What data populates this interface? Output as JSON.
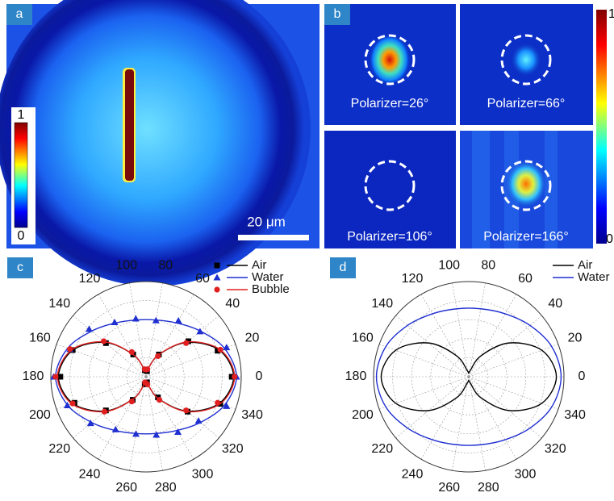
{
  "images": [
    {
      "label": "a",
      "colorbar": {
        "max": "1",
        "min": "0"
      },
      "scale_bar": "20 μm"
    },
    {
      "label": "b",
      "subpanels": [
        "Polarizer=26°",
        "Polarizer=66°",
        "Polarizer=106°",
        "Polarizer=166°"
      ],
      "colorbar": {
        "max": "1",
        "min": "0"
      }
    }
  ],
  "chart_data": [
    {
      "type": "polar",
      "panel_label": "c",
      "rlim": [
        0,
        1
      ],
      "rticks": [
        0.2,
        0.4,
        0.6,
        0.8,
        1
      ],
      "thetaticks": [
        0,
        20,
        40,
        60,
        80,
        100,
        120,
        140,
        160,
        180,
        200,
        220,
        240,
        260,
        280,
        300,
        320,
        340
      ],
      "grid": true,
      "legend": "top-right",
      "series": [
        {
          "name": "Air",
          "color": "#000000",
          "marker": "square",
          "theta": [
            0,
            20,
            40,
            60,
            80,
            100,
            120,
            140,
            160,
            180,
            200,
            220,
            240,
            260,
            280,
            300,
            320,
            340
          ],
          "r": [
            0.92,
            0.818,
            0.56,
            0.268,
            0.076,
            0.076,
            0.268,
            0.56,
            0.818,
            0.92,
            0.818,
            0.56,
            0.268,
            0.076,
            0.076,
            0.268,
            0.56,
            0.818
          ],
          "points_r": [
            0.9,
            0.8,
            0.58,
            0.27,
            0.06,
            0.07,
            0.27,
            0.55,
            0.82,
            0.9,
            0.8,
            0.55,
            0.28,
            0.08,
            0.06,
            0.25,
            0.57,
            0.83
          ]
        },
        {
          "name": "Water",
          "color": "#1f2fd0",
          "marker": "triangle",
          "theta": [
            0,
            20,
            40,
            60,
            80,
            100,
            120,
            140,
            160,
            180,
            200,
            220,
            240,
            260,
            280,
            300,
            320,
            340
          ],
          "r": [
            0.95,
            0.876,
            0.746,
            0.651,
            0.605,
            0.605,
            0.651,
            0.746,
            0.876,
            0.95,
            0.876,
            0.746,
            0.651,
            0.605,
            0.605,
            0.651,
            0.746,
            0.876
          ],
          "points_r": [
            0.95,
            0.9,
            0.74,
            0.68,
            0.6,
            0.62,
            0.66,
            0.78,
            0.85,
            0.97,
            0.88,
            0.76,
            0.64,
            0.61,
            0.62,
            0.67,
            0.72,
            0.9
          ]
        },
        {
          "name": "Bubble",
          "color": "#e02020",
          "marker": "circle",
          "theta": [
            0,
            20,
            40,
            60,
            80,
            100,
            120,
            140,
            160,
            180,
            200,
            220,
            240,
            260,
            280,
            300,
            320,
            340
          ],
          "r": [
            0.93,
            0.83,
            0.57,
            0.27,
            0.07,
            0.07,
            0.27,
            0.57,
            0.83,
            0.93,
            0.83,
            0.57,
            0.27,
            0.07,
            0.07,
            0.27,
            0.57,
            0.83
          ],
          "points_r": [
            0.93,
            0.83,
            0.55,
            0.25,
            0.08,
            0.08,
            0.3,
            0.58,
            0.85,
            0.95,
            0.82,
            0.57,
            0.3,
            0.06,
            0.08,
            0.28,
            0.55,
            0.8
          ]
        }
      ]
    },
    {
      "type": "polar",
      "panel_label": "d",
      "rlim": [
        0,
        1
      ],
      "rticks": [
        0.2,
        0.4,
        0.6,
        0.8,
        1
      ],
      "thetaticks": [
        0,
        20,
        40,
        60,
        80,
        100,
        120,
        140,
        160,
        180,
        200,
        220,
        240,
        260,
        280,
        300,
        320,
        340
      ],
      "grid": true,
      "legend": "top-right",
      "series": [
        {
          "name": "Air",
          "color": "#000000",
          "theta": [
            0,
            20,
            40,
            60,
            80,
            100,
            120,
            140,
            160,
            180,
            200,
            220,
            240,
            260,
            280,
            300,
            320,
            340
          ],
          "r": [
            0.92,
            0.816,
            0.552,
            0.253,
            0.057,
            0.057,
            0.253,
            0.552,
            0.816,
            0.92,
            0.816,
            0.552,
            0.253,
            0.057,
            0.057,
            0.253,
            0.552,
            0.816
          ]
        },
        {
          "name": "Water",
          "color": "#1f2fd0",
          "theta": [
            0,
            20,
            40,
            60,
            80,
            100,
            120,
            140,
            160,
            180,
            200,
            220,
            240,
            260,
            280,
            300,
            320,
            340
          ],
          "r": [
            0.97,
            0.927,
            0.839,
            0.764,
            0.725,
            0.725,
            0.764,
            0.839,
            0.927,
            0.97,
            0.927,
            0.839,
            0.764,
            0.725,
            0.725,
            0.764,
            0.839,
            0.927
          ]
        }
      ]
    }
  ]
}
